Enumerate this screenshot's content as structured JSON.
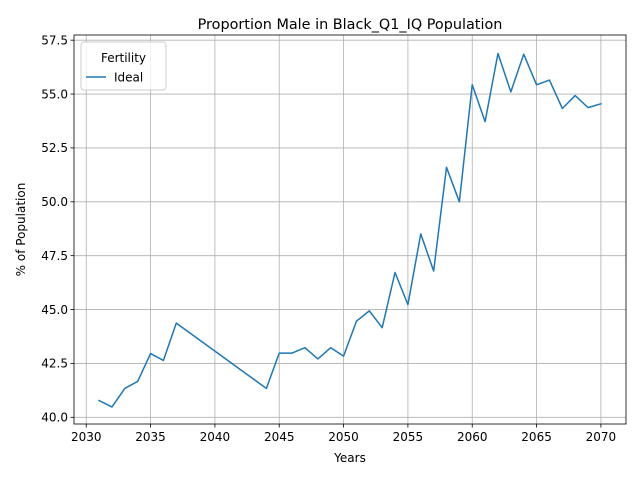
{
  "chart_data": {
    "type": "line",
    "title": "Proportion Male in Black_Q1_IQ Population",
    "xlabel": "Years",
    "ylabel": "% of Population",
    "xlim": [
      2029.05,
      2071.95
    ],
    "ylim": [
      39.69,
      57.74
    ],
    "xticks": [
      2030,
      2035,
      2040,
      2045,
      2050,
      2055,
      2060,
      2065,
      2070
    ],
    "xtick_labels": [
      "2030",
      "2035",
      "2040",
      "2045",
      "2050",
      "2055",
      "2060",
      "2065",
      "2070"
    ],
    "yticks": [
      40.0,
      42.5,
      45.0,
      47.5,
      50.0,
      52.5,
      55.0,
      57.5
    ],
    "ytick_labels": [
      "40.0",
      "42.5",
      "45.0",
      "47.5",
      "50.0",
      "52.5",
      "55.0",
      "57.5"
    ],
    "grid": true,
    "legend": {
      "title": "Fertility",
      "placement": "top-left"
    },
    "series": [
      {
        "name": "Ideal",
        "color": "#1f77b4",
        "x": [
          2031,
          2032,
          2033,
          2034,
          2035,
          2036,
          2037,
          2044,
          2045,
          2046,
          2047,
          2048,
          2049,
          2050,
          2051,
          2052,
          2053,
          2054,
          2055,
          2056,
          2057,
          2058,
          2059,
          2060,
          2061,
          2062,
          2063,
          2064,
          2065,
          2066,
          2067,
          2068,
          2069,
          2070
        ],
        "y": [
          40.78,
          40.48,
          41.34,
          41.67,
          42.96,
          42.64,
          44.37,
          41.34,
          42.98,
          42.98,
          43.23,
          42.71,
          43.23,
          42.84,
          44.46,
          44.94,
          44.16,
          46.72,
          45.23,
          48.51,
          46.79,
          51.6,
          50.0,
          55.43,
          53.72,
          56.88,
          55.1,
          56.85,
          55.43,
          55.65,
          54.33,
          54.93,
          54.37,
          54.55
        ]
      }
    ]
  }
}
